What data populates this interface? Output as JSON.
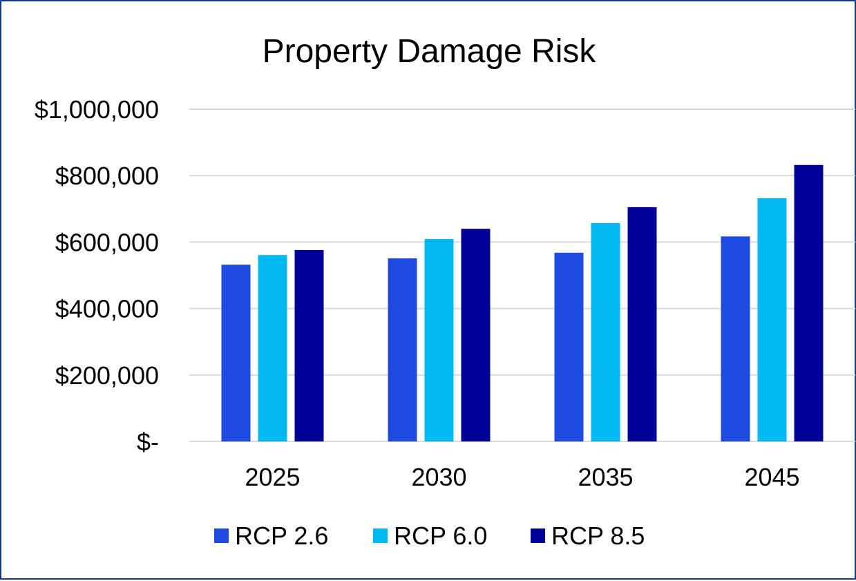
{
  "chart_data": {
    "type": "bar",
    "title": "Property Damage Risk",
    "xlabel": "",
    "ylabel": "",
    "categories": [
      "2025",
      "2030",
      "2035",
      "2045"
    ],
    "series": [
      {
        "name": "RCP 2.6",
        "color": "#1f4ae0",
        "values": [
          532000,
          551000,
          568000,
          617000
        ]
      },
      {
        "name": "RCP 6.0",
        "color": "#00b9f1",
        "values": [
          561000,
          609000,
          657000,
          732000
        ]
      },
      {
        "name": "RCP 8.5",
        "color": "#000099",
        "values": [
          576000,
          640000,
          705000,
          832000
        ]
      }
    ],
    "ylim": [
      0,
      1000000
    ],
    "yticks": [
      0,
      200000,
      400000,
      600000,
      800000,
      1000000
    ],
    "ytick_labels": [
      "$-",
      "$200,000",
      "$400,000",
      "$600,000",
      "$800,000",
      "$1,000,000"
    ],
    "grid": true,
    "legend_position": "bottom"
  }
}
